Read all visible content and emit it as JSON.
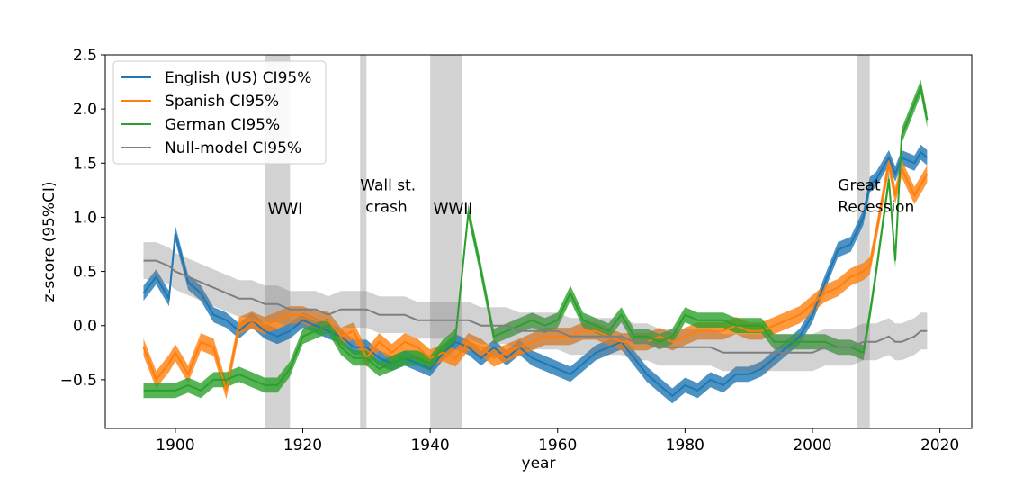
{
  "chart_data": {
    "type": "line",
    "title": "",
    "xlabel": "year",
    "ylabel": "z-score (95%CI)",
    "xlim": [
      1889,
      2025
    ],
    "ylim": [
      -0.95,
      2.5
    ],
    "xticks": [
      1900,
      1920,
      1940,
      1960,
      1980,
      2000,
      2020
    ],
    "yticks": [
      -0.5,
      0.0,
      0.5,
      1.0,
      1.5,
      2.0,
      2.5
    ],
    "ytick_labels": [
      "−0.5",
      "0.0",
      "0.5",
      "1.0",
      "1.5",
      "2.0",
      "2.5"
    ],
    "grid": false,
    "legend_position": "top-left",
    "shaded_periods": [
      {
        "label": "WWI",
        "start": 1914,
        "end": 1918
      },
      {
        "label": "Wall st. crash",
        "start": 1929,
        "end": 1930
      },
      {
        "label": "WWII",
        "start": 1940,
        "end": 1945
      },
      {
        "label": "Great Recession",
        "start": 2007,
        "end": 2009
      }
    ],
    "annotations": [
      {
        "lines": [
          "WWI"
        ],
        "x": 1914.5,
        "y": 1.03
      },
      {
        "lines": [
          "Wall st.",
          "crash"
        ],
        "x": 1929,
        "y": 1.25
      },
      {
        "lines": [
          "WWII"
        ],
        "x": 1940.5,
        "y": 1.03
      },
      {
        "lines": [
          "Great",
          "Recession"
        ],
        "x": 2004,
        "y": 1.25
      }
    ],
    "x": [
      1895,
      1897,
      1899,
      1900,
      1902,
      1904,
      1906,
      1908,
      1910,
      1912,
      1914,
      1916,
      1918,
      1920,
      1922,
      1924,
      1926,
      1928,
      1930,
      1932,
      1934,
      1936,
      1938,
      1940,
      1942,
      1944,
      1946,
      1948,
      1950,
      1952,
      1954,
      1956,
      1958,
      1960,
      1962,
      1964,
      1966,
      1968,
      1970,
      1972,
      1974,
      1976,
      1978,
      1980,
      1982,
      1984,
      1986,
      1988,
      1990,
      1992,
      1994,
      1996,
      1998,
      2000,
      2002,
      2004,
      2006,
      2008,
      2009,
      2010,
      2012,
      2013,
      2014,
      2016,
      2017,
      2018
    ],
    "series": [
      {
        "name": "English (US) CI95%",
        "color": "#1f77b4",
        "halfwidth": 0.07,
        "values": [
          0.3,
          0.45,
          0.25,
          0.85,
          0.4,
          0.3,
          0.1,
          0.05,
          -0.05,
          0.05,
          -0.05,
          -0.1,
          -0.05,
          0.05,
          0.0,
          -0.05,
          -0.1,
          -0.2,
          -0.2,
          -0.3,
          -0.35,
          -0.3,
          -0.35,
          -0.4,
          -0.25,
          -0.15,
          -0.2,
          -0.3,
          -0.2,
          -0.3,
          -0.2,
          -0.3,
          -0.35,
          -0.4,
          -0.45,
          -0.35,
          -0.25,
          -0.2,
          -0.15,
          -0.3,
          -0.45,
          -0.55,
          -0.65,
          -0.55,
          -0.6,
          -0.5,
          -0.55,
          -0.45,
          -0.45,
          -0.4,
          -0.3,
          -0.2,
          -0.1,
          0.1,
          0.4,
          0.7,
          0.75,
          1.0,
          1.3,
          1.35,
          1.55,
          1.4,
          1.55,
          1.5,
          1.6,
          1.55
        ]
      },
      {
        "name": "Spanish CI95%",
        "color": "#ff7f0e",
        "halfwidth": 0.08,
        "values": [
          -0.2,
          -0.5,
          -0.35,
          -0.25,
          -0.45,
          -0.15,
          -0.2,
          -0.6,
          0.0,
          0.05,
          0.0,
          0.05,
          0.1,
          0.1,
          0.05,
          0.05,
          -0.1,
          -0.05,
          -0.3,
          -0.15,
          -0.25,
          -0.15,
          -0.2,
          -0.3,
          -0.25,
          -0.3,
          -0.15,
          -0.2,
          -0.3,
          -0.25,
          -0.2,
          -0.15,
          -0.1,
          -0.1,
          -0.1,
          -0.05,
          -0.05,
          -0.1,
          -0.15,
          -0.15,
          -0.15,
          -0.1,
          -0.15,
          -0.1,
          -0.05,
          -0.05,
          -0.05,
          0.0,
          -0.05,
          -0.05,
          0.0,
          0.05,
          0.1,
          0.2,
          0.3,
          0.35,
          0.45,
          0.5,
          0.55,
          0.85,
          1.5,
          1.2,
          1.45,
          1.2,
          1.3,
          1.4
        ]
      },
      {
        "name": "German CI95%",
        "color": "#2ca02c",
        "halfwidth": 0.07,
        "values": [
          -0.6,
          -0.6,
          -0.6,
          -0.6,
          -0.55,
          -0.6,
          -0.5,
          -0.5,
          -0.45,
          -0.5,
          -0.55,
          -0.55,
          -0.4,
          -0.1,
          -0.05,
          0.0,
          -0.2,
          -0.3,
          -0.3,
          -0.4,
          -0.35,
          -0.3,
          -0.3,
          -0.35,
          -0.2,
          -0.1,
          1.05,
          0.5,
          -0.1,
          -0.05,
          0.0,
          0.05,
          0.0,
          0.05,
          0.3,
          0.05,
          0.0,
          -0.05,
          0.1,
          -0.1,
          -0.1,
          -0.15,
          -0.1,
          0.1,
          0.05,
          0.05,
          0.05,
          0.0,
          0.0,
          0.0,
          -0.15,
          -0.15,
          -0.15,
          -0.15,
          -0.15,
          -0.2,
          -0.2,
          -0.25,
          0.1,
          0.5,
          1.35,
          0.6,
          1.75,
          2.05,
          2.2,
          1.9
        ]
      },
      {
        "name": "Null-model CI95%",
        "color": "#7f7f7f",
        "halfwidth": 0.17,
        "values": [
          0.6,
          0.6,
          0.55,
          0.5,
          0.45,
          0.4,
          0.35,
          0.3,
          0.25,
          0.25,
          0.2,
          0.2,
          0.15,
          0.15,
          0.15,
          0.1,
          0.15,
          0.15,
          0.15,
          0.1,
          0.1,
          0.1,
          0.05,
          0.05,
          0.05,
          0.05,
          0.05,
          0.0,
          0.0,
          0.0,
          -0.05,
          -0.05,
          -0.05,
          -0.05,
          -0.1,
          -0.1,
          -0.1,
          -0.1,
          -0.1,
          -0.15,
          -0.15,
          -0.2,
          -0.2,
          -0.2,
          -0.2,
          -0.2,
          -0.25,
          -0.25,
          -0.25,
          -0.25,
          -0.25,
          -0.25,
          -0.25,
          -0.25,
          -0.2,
          -0.2,
          -0.2,
          -0.15,
          -0.15,
          -0.15,
          -0.1,
          -0.15,
          -0.15,
          -0.1,
          -0.05,
          -0.05
        ]
      }
    ]
  }
}
